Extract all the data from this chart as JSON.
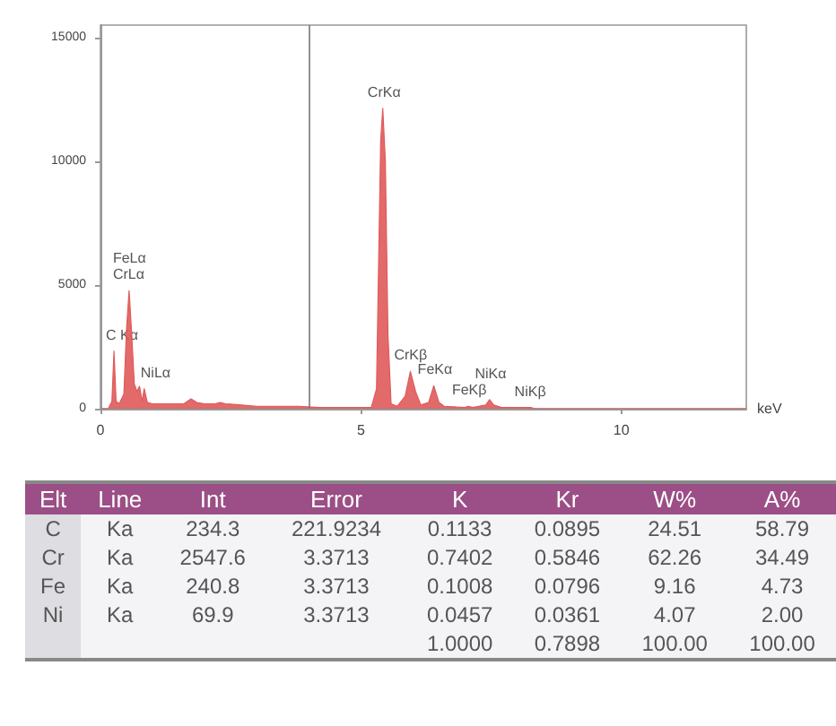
{
  "chart_data": [
    {
      "type": "area",
      "xlabel": "keV",
      "color": "#e05a5a",
      "xlim": [
        0,
        12.4
      ],
      "xticks": [
        0,
        5,
        10
      ],
      "ylim": [
        0,
        15500
      ],
      "yticks": [
        0,
        5000,
        10000,
        15000
      ],
      "grid": false,
      "x": [
        0,
        0.15,
        0.22,
        0.26,
        0.3,
        0.36,
        0.45,
        0.5,
        0.55,
        0.6,
        0.65,
        0.7,
        0.75,
        0.8,
        0.84,
        0.9,
        1.0,
        1.2,
        1.4,
        1.6,
        1.74,
        1.85,
        2.0,
        2.2,
        2.3,
        2.4,
        2.7,
        3.0,
        3.4,
        3.7,
        3.8,
        4.2,
        4.6,
        5.0,
        5.2,
        5.3,
        5.38,
        5.42,
        5.47,
        5.52,
        5.58,
        5.7,
        5.85,
        5.95,
        6.05,
        6.15,
        6.3,
        6.4,
        6.5,
        6.6,
        7.0,
        7.06,
        7.15,
        7.4,
        7.47,
        7.55,
        7.7,
        8.2,
        8.26,
        8.35,
        9,
        10,
        12.4
      ],
      "values": [
        0,
        0,
        300,
        2330,
        300,
        200,
        600,
        3200,
        4770,
        3000,
        1000,
        700,
        900,
        300,
        810,
        250,
        200,
        200,
        200,
        200,
        400,
        250,
        200,
        200,
        250,
        200,
        150,
        100,
        100,
        100,
        100,
        50,
        50,
        50,
        50,
        800,
        10800,
        12140,
        10000,
        3000,
        200,
        100,
        500,
        1510,
        700,
        150,
        250,
        930,
        250,
        100,
        50,
        100,
        50,
        150,
        370,
        150,
        50,
        50,
        50,
        0,
        0,
        0,
        0
      ],
      "ref_lines": [
        {
          "axis": "x",
          "value": 4
        }
      ],
      "annotations": [
        {
          "text": "C Kα",
          "x": 0.26,
          "y": 2330
        },
        {
          "text": "FeLα",
          "x": 0.55,
          "y": 4770
        },
        {
          "text": "CrLα",
          "x": 0.55,
          "y": 4770
        },
        {
          "text": "NiLα",
          "x": 0.84,
          "y": 810
        },
        {
          "text": "CrKα",
          "x": 5.44,
          "y": 12140
        },
        {
          "text": "CrKβ",
          "x": 5.95,
          "y": 1510
        },
        {
          "text": "FeKα",
          "x": 6.4,
          "y": 930
        },
        {
          "text": "FeKβ",
          "x": 7.06,
          "y": 100
        },
        {
          "text": "NiKα",
          "x": 7.5,
          "y": 770
        },
        {
          "text": "NiKβ",
          "x": 8.26,
          "y": 50
        }
      ]
    },
    {
      "type": "other",
      "color": "#9b4f86",
      "categories": [
        "Elt",
        "Line",
        "Int",
        "Error",
        "K",
        "Kr",
        "W%",
        "A%"
      ],
      "cell_labels": [
        [
          "C",
          "Ka",
          "234.3",
          "221.9234",
          "0.1133",
          "0.0895",
          "24.51",
          "58.79"
        ],
        [
          "Cr",
          "Ka",
          "2547.6",
          "3.3713",
          "0.7402",
          "0.5846",
          "62.26",
          "34.49"
        ],
        [
          "Fe",
          "Ka",
          "240.8",
          "3.3713",
          "0.1008",
          "0.0796",
          "9.16",
          "4.73"
        ],
        [
          "Ni",
          "Ka",
          "69.9",
          "3.3713",
          "0.0457",
          "0.0361",
          "4.07",
          "2.00"
        ],
        [
          null,
          null,
          null,
          null,
          "1.0000",
          "0.7898",
          "100.00",
          "100.00"
        ]
      ]
    }
  ]
}
